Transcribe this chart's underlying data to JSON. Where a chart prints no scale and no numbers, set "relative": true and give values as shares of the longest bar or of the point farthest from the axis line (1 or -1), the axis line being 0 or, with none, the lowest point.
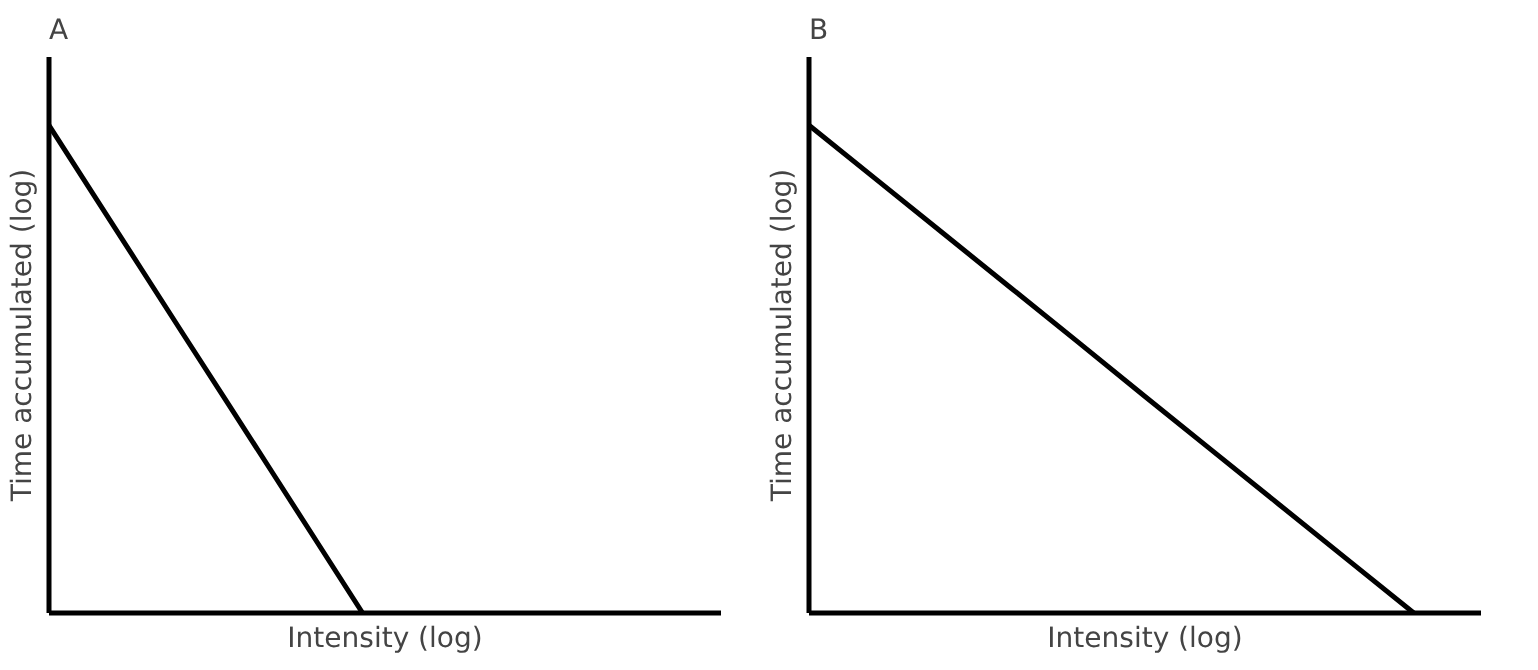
{
  "chart_data": [
    {
      "type": "line",
      "title": "A",
      "xlabel": "Intensity (log)",
      "ylabel": "Time accumulated (log)",
      "relative": true,
      "categories": [
        null,
        null,
        null,
        null,
        null,
        null,
        null,
        null,
        null,
        null,
        null,
        null,
        null,
        null,
        null,
        null
      ],
      "series": [
        {
          "color": "#000000",
          "values": [
            1,
            0.857,
            0.714,
            0.571,
            0.429,
            0.286,
            0.143,
            0,
            null,
            null,
            null,
            null,
            null,
            null,
            null,
            null
          ]
        }
      ]
    },
    {
      "type": "line",
      "title": "B",
      "xlabel": "Intensity (log)",
      "ylabel": "Time accumulated (log)",
      "relative": true,
      "categories": [
        null,
        null,
        null,
        null,
        null,
        null,
        null,
        null,
        null,
        null,
        null
      ],
      "series": [
        {
          "color": "#000000",
          "values": [
            1,
            0.889,
            0.778,
            0.667,
            0.556,
            0.444,
            0.333,
            0.222,
            0.111,
            0,
            null
          ]
        }
      ]
    }
  ]
}
